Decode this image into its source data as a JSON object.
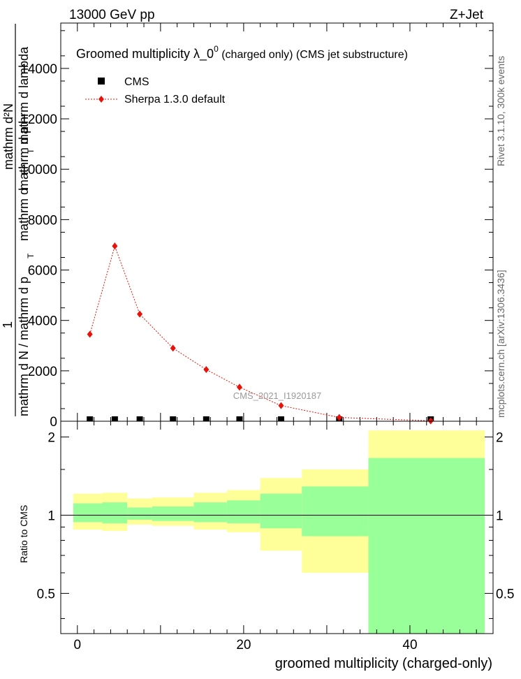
{
  "header": {
    "left": "13000 GeV pp",
    "right": "Z+Jet"
  },
  "side_labels": {
    "rivet": "Rivet 3.1.10,  300k events",
    "mcplots": "mcplots.cern.ch [arXiv:1306.3436]"
  },
  "watermark": "CMS_2021_I1920187",
  "chart_data": [
    {
      "type": "scatter",
      "title": "Groomed multiplicity  λ_0",
      "title_superscript": "0",
      "title_suffix": " (charged only) (CMS jet substructure)",
      "ylabel_lines": [
        "mathrm d²N",
        "mathrm d p_T mathrm d lambda",
        "1",
        "mathrm d N / mathrm d p_T mathrm d"
      ],
      "ylabel_visible": {
        "numerator_a": "mathrm d²N",
        "numerator_b": "mathrm d p",
        "numerator_b_sub": "T",
        "numerator_c": "mathrm d lambda",
        "one": "1",
        "denominator_a": "mathrm d N / mathrm d p",
        "denominator_a_sub": "T",
        "denominator_b": "mathrm d"
      },
      "xlim": [
        -2,
        50
      ],
      "ylim": [
        0,
        15800
      ],
      "yticks": [
        0,
        2000,
        4000,
        6000,
        8000,
        10000,
        12000,
        14000
      ],
      "ytick_labels": [
        "0",
        "2000",
        "4000",
        "6000",
        "8000",
        "10000",
        "12000",
        "14000"
      ],
      "legend_position": "top-left",
      "series": [
        {
          "name": "CMS",
          "marker": "square",
          "color": "#000000",
          "x": [
            1.5,
            4.5,
            7.5,
            11.5,
            15.5,
            19.5,
            24.5,
            31.5,
            42.5
          ],
          "y": [
            0,
            0,
            0,
            0,
            0,
            0,
            0,
            0,
            0
          ]
        },
        {
          "name": "Sherpa 1.3.0 default",
          "marker": "diamond",
          "color": "#e8120b",
          "x": [
            1.5,
            4.5,
            7.5,
            11.5,
            15.5,
            19.5,
            24.5,
            31.5,
            42.5
          ],
          "y": [
            3450,
            6950,
            4250,
            2900,
            2050,
            1350,
            620,
            150,
            15
          ],
          "yerr": [
            70,
            140,
            80,
            60,
            50,
            40,
            30,
            15,
            5
          ]
        }
      ]
    },
    {
      "type": "area",
      "ylabel": "Ratio to CMS",
      "xlabel": "groomed multiplicity (charged-only)",
      "xlim": [
        -2,
        50
      ],
      "ylim": [
        0.35,
        2.3
      ],
      "xticks": [
        0,
        20,
        40
      ],
      "xtick_labels": [
        "0",
        "20",
        "40"
      ],
      "yticks": [
        0.5,
        1,
        2
      ],
      "ytick_labels": [
        "0.5",
        "1",
        "2"
      ],
      "reference_line": 1,
      "band_colors": {
        "inner": "#99ff99",
        "outer": "#ffff99"
      },
      "bins": [
        {
          "xlo": -0.5,
          "xhi": 3,
          "green": [
            0.94,
            1.11
          ],
          "yellow": [
            0.88,
            1.21
          ]
        },
        {
          "xlo": 3,
          "xhi": 6,
          "green": [
            0.93,
            1.12
          ],
          "yellow": [
            0.87,
            1.22
          ]
        },
        {
          "xlo": 6,
          "xhi": 9,
          "green": [
            0.96,
            1.07
          ],
          "yellow": [
            0.92,
            1.16
          ]
        },
        {
          "xlo": 9,
          "xhi": 14,
          "green": [
            0.95,
            1.08
          ],
          "yellow": [
            0.91,
            1.17
          ]
        },
        {
          "xlo": 14,
          "xhi": 18,
          "green": [
            0.94,
            1.12
          ],
          "yellow": [
            0.88,
            1.22
          ]
        },
        {
          "xlo": 18,
          "xhi": 22,
          "green": [
            0.93,
            1.14
          ],
          "yellow": [
            0.86,
            1.25
          ]
        },
        {
          "xlo": 22,
          "xhi": 27,
          "green": [
            0.89,
            1.21
          ],
          "yellow": [
            0.73,
            1.39
          ]
        },
        {
          "xlo": 27,
          "xhi": 35,
          "green": [
            0.83,
            1.29
          ],
          "yellow": [
            0.6,
            1.5
          ]
        },
        {
          "xlo": 35,
          "xhi": 49,
          "green": [
            0.35,
            1.66
          ],
          "yellow": [
            0.35,
            2.12
          ]
        }
      ]
    }
  ]
}
